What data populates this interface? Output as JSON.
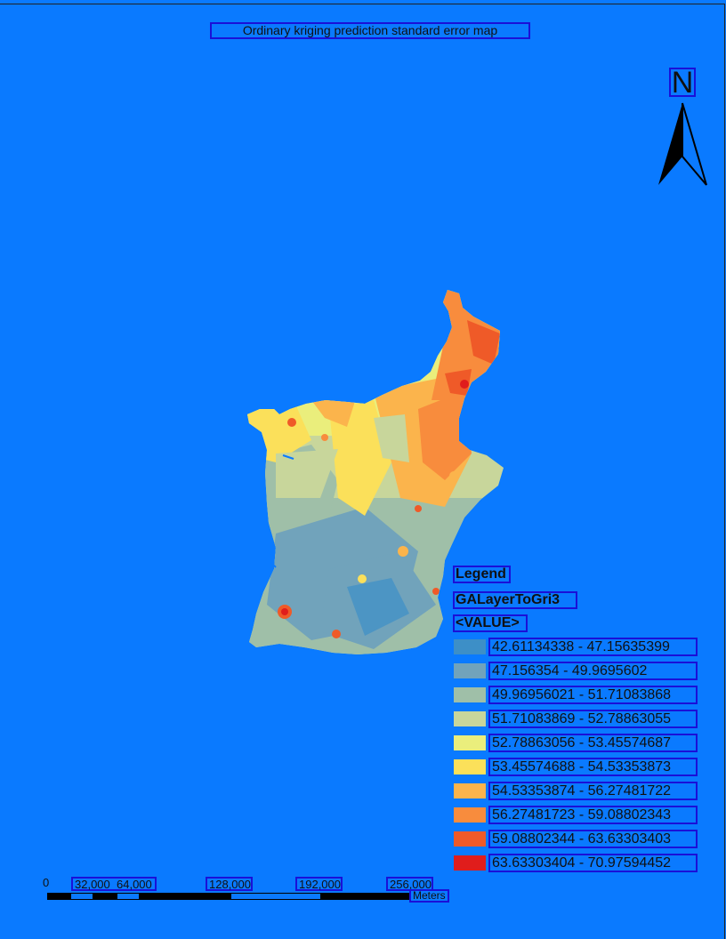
{
  "map_title": "Ordinary kriging prediction standard error map",
  "north_arrow": {
    "label": "N",
    "icon": "north-arrow-icon"
  },
  "legend": {
    "title": "Legend",
    "layer_name": "GALayerToGri3",
    "field": "<VALUE>",
    "classes": [
      {
        "label": "42.61134338 - 47.15635399",
        "color": "#3d8fc7"
      },
      {
        "label": "47.156354 - 49.9695602",
        "color": "#71a3bb"
      },
      {
        "label": "49.96956021 - 51.71083868",
        "color": "#9fbfa8"
      },
      {
        "label": "51.71083869 - 52.78863055",
        "color": "#c8d69b"
      },
      {
        "label": "52.78863056 - 53.45574687",
        "color": "#eaee7c"
      },
      {
        "label": "53.45574688 - 54.53353873",
        "color": "#fbe05a"
      },
      {
        "label": "54.53353874 - 56.27481722",
        "color": "#fbb44c"
      },
      {
        "label": "56.27481723 - 59.08802343",
        "color": "#f88c3d"
      },
      {
        "label": "59.08802344 - 63.63303403",
        "color": "#ef5a28"
      },
      {
        "label": "63.63303404 - 70.97594452",
        "color": "#e01d1c"
      }
    ]
  },
  "scale_bar": {
    "ticks": [
      "0",
      "32,000",
      "64,000",
      "128,000",
      "192,000",
      "256,000"
    ],
    "units": "Meters"
  },
  "colors": {
    "background": "#0a7aff",
    "annotation_box": "#1a10d8"
  }
}
